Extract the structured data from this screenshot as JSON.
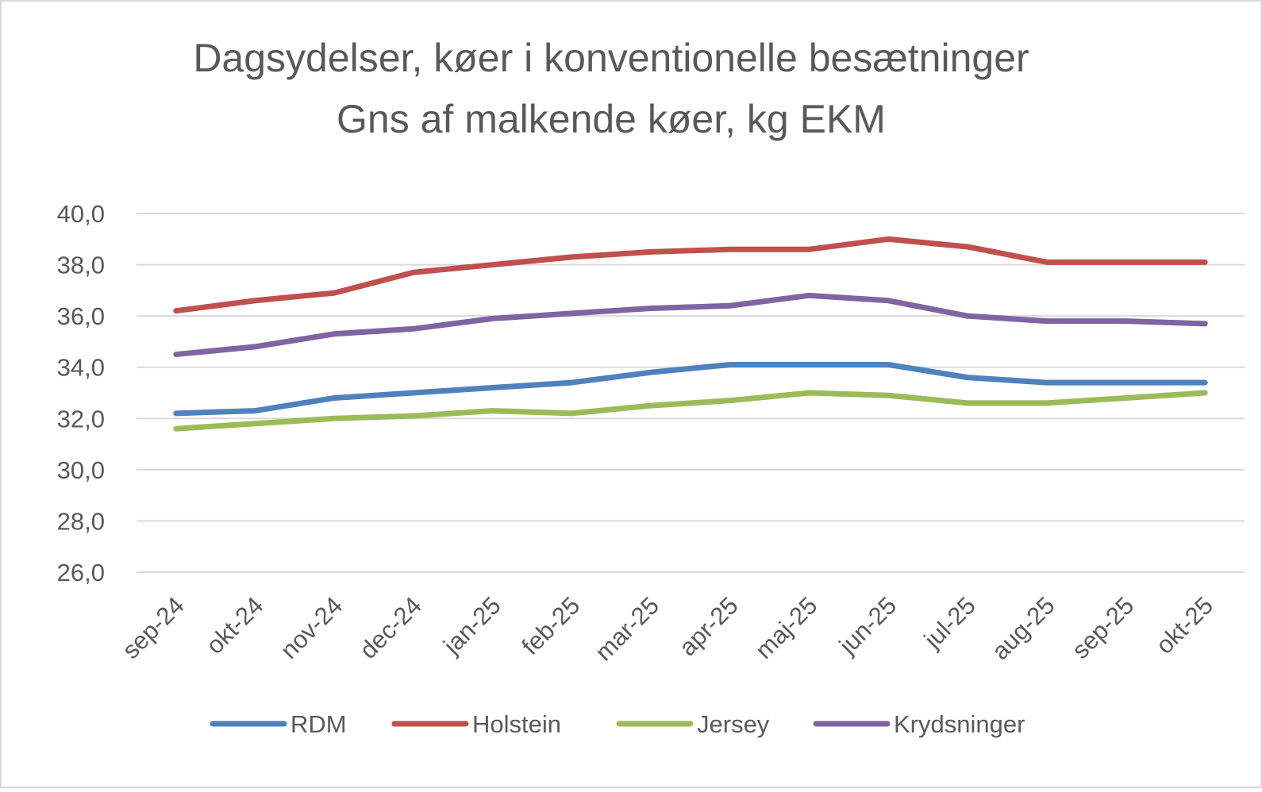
{
  "chart_data": {
    "type": "line",
    "title": [
      "Dagsydelser, køer i konventionelle besætninger",
      "Gns af malkende køer, kg EKM"
    ],
    "xlabel": "",
    "ylabel": "",
    "ylim": [
      26,
      40
    ],
    "yticks": [
      "26,0",
      "28,0",
      "30,0",
      "32,0",
      "34,0",
      "36,0",
      "38,0",
      "40,0"
    ],
    "ytick_values": [
      26,
      28,
      30,
      32,
      34,
      36,
      38,
      40
    ],
    "grid": true,
    "legend": "bottom",
    "categories": [
      "sep-24",
      "okt-24",
      "nov-24",
      "dec-24",
      "jan-25",
      "feb-25",
      "mar-25",
      "apr-25",
      "maj-25",
      "jun-25",
      "jul-25",
      "aug-25",
      "sep-25",
      "okt-25"
    ],
    "series": [
      {
        "name": "RDM",
        "color": "#4F81BD",
        "values": [
          32.2,
          32.3,
          32.8,
          33.0,
          33.2,
          33.4,
          33.8,
          34.1,
          34.1,
          34.1,
          33.6,
          33.4,
          33.4,
          33.4
        ]
      },
      {
        "name": "Holstein",
        "color": "#C0504D",
        "values": [
          36.2,
          36.6,
          36.9,
          37.7,
          38.0,
          38.3,
          38.5,
          38.6,
          38.6,
          39.0,
          38.7,
          38.1,
          38.1,
          38.1
        ]
      },
      {
        "name": "Jersey",
        "color": "#9BBB59",
        "values": [
          31.6,
          31.8,
          32.0,
          32.1,
          32.3,
          32.2,
          32.5,
          32.7,
          33.0,
          32.9,
          32.6,
          32.6,
          32.8,
          33.0
        ]
      },
      {
        "name": "Krydsninger",
        "color": "#8064A2",
        "values": [
          34.5,
          34.8,
          35.3,
          35.5,
          35.9,
          36.1,
          36.3,
          36.4,
          36.8,
          36.6,
          36.0,
          35.8,
          35.8,
          35.7
        ]
      }
    ]
  }
}
